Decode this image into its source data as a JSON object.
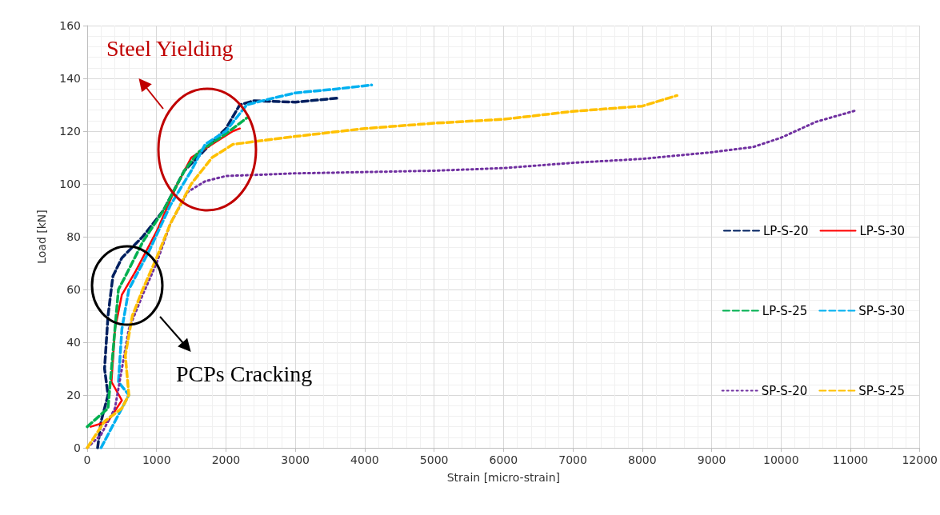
{
  "chart_data": {
    "type": "line",
    "xlabel": "Strain [micro-strain]",
    "ylabel": "Load [kN]",
    "xlim": [
      0,
      12000
    ],
    "xticks": [
      0,
      1000,
      2000,
      3000,
      4000,
      5000,
      6000,
      7000,
      8000,
      9000,
      10000,
      11000,
      12000
    ],
    "ylim": [
      0,
      160
    ],
    "yticks": [
      0,
      20,
      40,
      60,
      80,
      100,
      120,
      140,
      160
    ],
    "grid": true,
    "legend": "right",
    "marker": "none",
    "annotations": [
      "Steel Yielding",
      "PCPs Cracking"
    ],
    "series": [
      {
        "name": "LP-S-20",
        "color": "#002060",
        "line_style": "dashed",
        "x": [
          150,
          200,
          300,
          250,
          300,
          370,
          500,
          800,
          1100,
          1400,
          1700,
          2000,
          2200,
          2400,
          3000,
          3600
        ],
        "values": [
          0,
          10,
          20,
          30,
          50,
          65,
          72,
          80,
          90,
          105,
          113,
          121,
          130,
          131.5,
          131,
          132.5
        ]
      },
      {
        "name": "LP-S-30",
        "color": "#ff0000",
        "line_style": "solid",
        "x": [
          50,
          300,
          500,
          350,
          400,
          500,
          700,
          1000,
          1300,
          1500,
          1800,
          2100,
          2200
        ],
        "values": [
          8,
          10,
          18,
          25,
          45,
          58,
          67,
          82,
          100,
          110,
          115,
          120,
          121
        ]
      },
      {
        "name": "LP-S-25",
        "color": "#00b050",
        "line_style": "dashed",
        "x": [
          0,
          300,
          350,
          400,
          450,
          550,
          800,
          1100,
          1400,
          1600,
          2000,
          2200,
          2300
        ],
        "values": [
          8,
          15,
          30,
          45,
          60,
          65,
          78,
          90,
          105,
          112,
          119,
          123,
          125
        ]
      },
      {
        "name": "SP-S-30",
        "color": "#00b0f0",
        "line_style": "dashed",
        "x": [
          200,
          400,
          600,
          450,
          500,
          600,
          900,
          1200,
          1500,
          1700,
          2000,
          2300,
          2600,
          3000,
          3600,
          4100
        ],
        "values": [
          0,
          10,
          20,
          25,
          45,
          60,
          75,
          92,
          105,
          115,
          120,
          130,
          132,
          134.5,
          136,
          137.5
        ]
      },
      {
        "name": "SP-S-20",
        "color": "#7030a0",
        "line_style": "dotted",
        "x": [
          0,
          200,
          400,
          500,
          600,
          800,
          1000,
          1200,
          1450,
          1700,
          2000,
          3000,
          4000,
          5000,
          6000,
          7000,
          8000,
          9000,
          9600,
          10000,
          10500,
          11100
        ],
        "values": [
          0,
          5,
          15,
          30,
          45,
          58,
          70,
          85,
          97,
          101,
          103,
          104,
          104.5,
          105,
          106,
          108,
          109.5,
          112,
          114,
          117.5,
          123.5,
          128
        ]
      },
      {
        "name": "SP-S-25",
        "color": "#ffc000",
        "line_style": "dashed",
        "x": [
          0,
          250,
          500,
          600,
          550,
          650,
          800,
          1000,
          1200,
          1500,
          1800,
          2100,
          3000,
          4000,
          5000,
          6000,
          7000,
          8000,
          8500
        ],
        "values": [
          0,
          10,
          15,
          20,
          35,
          50,
          60,
          72,
          85,
          100,
          110,
          115,
          118,
          121,
          123,
          124.5,
          127.5,
          129.5,
          133.5
        ]
      }
    ]
  }
}
